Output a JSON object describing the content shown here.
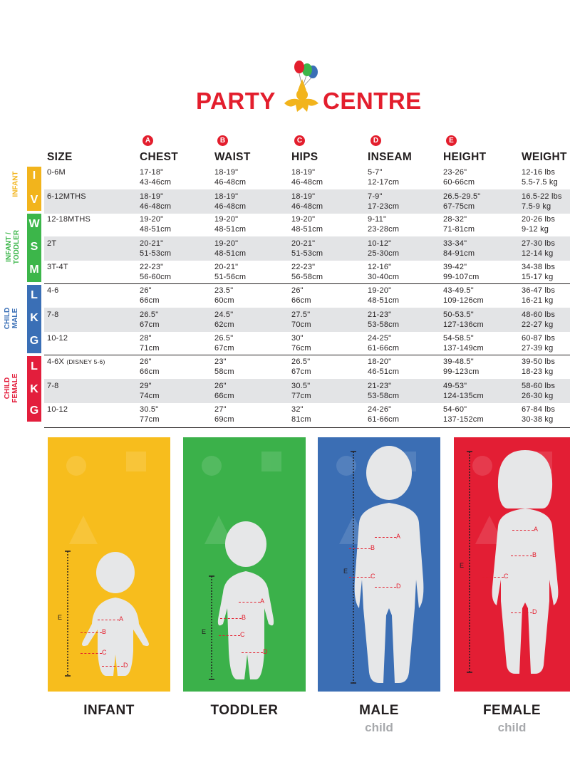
{
  "brand": {
    "name_left": "PARTY",
    "name_right": "CENTRE",
    "color": "#e31e2d"
  },
  "headers": [
    {
      "badge": "",
      "label": "SIZE"
    },
    {
      "badge": "A",
      "label": "CHEST"
    },
    {
      "badge": "B",
      "label": "WAIST"
    },
    {
      "badge": "C",
      "label": "HIPS"
    },
    {
      "badge": "D",
      "label": "INSEAM"
    },
    {
      "badge": "E",
      "label": "HEIGHT"
    },
    {
      "badge": "",
      "label": "WEIGHT"
    }
  ],
  "rows": [
    {
      "size": "0-6M",
      "size_note": "",
      "chest": "17-18\"\n43-46cm",
      "waist": "18-19\"\n46-48cm",
      "hips": "18-19\"\n46-48cm",
      "inseam": "5-7\"\n12-17cm",
      "height": "23-26\"\n60-66cm",
      "weight": "12-16 lbs\n5.5-7.5 kg"
    },
    {
      "size": "6-12MTHS",
      "size_note": "",
      "chest": "18-19\"\n46-48cm",
      "waist": "18-19\"\n46-48cm",
      "hips": "18-19\"\n46-48cm",
      "inseam": "7-9\"\n17-23cm",
      "height": "26.5-29.5\"\n67-75cm",
      "weight": "16.5-22 lbs\n7.5-9 kg"
    },
    {
      "size": "12-18MTHS",
      "size_note": "",
      "chest": "19-20\"\n48-51cm",
      "waist": "19-20\"\n48-51cm",
      "hips": "19-20\"\n48-51cm",
      "inseam": "9-11\"\n23-28cm",
      "height": "28-32\"\n71-81cm",
      "weight": "20-26 lbs\n9-12 kg"
    },
    {
      "size": "2T",
      "size_note": "",
      "chest": "20-21\"\n51-53cm",
      "waist": "19-20\"\n48-51cm",
      "hips": "20-21\"\n51-53cm",
      "inseam": "10-12\"\n25-30cm",
      "height": "33-34\"\n84-91cm",
      "weight": "27-30 lbs\n12-14 kg"
    },
    {
      "size": "3T-4T",
      "size_note": "",
      "chest": "22-23\"\n56-60cm",
      "waist": "20-21\"\n51-56cm",
      "hips": "22-23\"\n56-58cm",
      "inseam": "12-16\"\n30-40cm",
      "height": "39-42\"\n99-107cm",
      "weight": "34-38 lbs\n15-17 kg"
    },
    {
      "size": "4-6",
      "size_note": "",
      "chest": "26\"\n66cm",
      "waist": "23.5\"\n60cm",
      "hips": "26\"\n66cm",
      "inseam": "19-20\"\n48-51cm",
      "height": "43-49.5\"\n109-126cm",
      "weight": "36-47 lbs\n16-21 kg"
    },
    {
      "size": "7-8",
      "size_note": "",
      "chest": "26.5\"\n67cm",
      "waist": "24.5\"\n62cm",
      "hips": "27.5\"\n70cm",
      "inseam": "21-23\"\n53-58cm",
      "height": "50-53.5\"\n127-136cm",
      "weight": "48-60 lbs\n22-27 kg"
    },
    {
      "size": "10-12",
      "size_note": "",
      "chest": "28\"\n71cm",
      "waist": "26.5\"\n67cm",
      "hips": "30\"\n76cm",
      "inseam": "24-25\"\n61-66cm",
      "height": "54-58.5\"\n137-149cm",
      "weight": "60-87 lbs\n27-39 kg"
    },
    {
      "size": "4-6X",
      "size_note": "(DISNEY 5-6)",
      "chest": "26\"\n66cm",
      "waist": "23\"\n58cm",
      "hips": "26.5\"\n67cm",
      "inseam": "18-20\"\n46-51cm",
      "height": "39-48.5\"\n99-123cm",
      "weight": "39-50 lbs\n18-23 kg"
    },
    {
      "size": "7-8",
      "size_note": "",
      "chest": "29\"\n74cm",
      "waist": "26\"\n66cm",
      "hips": "30.5\"\n77cm",
      "inseam": "21-23\"\n53-58cm",
      "height": "49-53\"\n124-135cm",
      "weight": "58-60 lbs\n26-30 kg"
    },
    {
      "size": "10-12",
      "size_note": "",
      "chest": "30.5\"\n77cm",
      "waist": "27\"\n69cm",
      "hips": "32\"\n81cm",
      "inseam": "24-26\"\n61-66cm",
      "height": "54-60\"\n137-152cm",
      "weight": "67-84 lbs\n30-38 kg"
    }
  ],
  "groups": [
    {
      "label": "INFANT",
      "letters": [
        "I",
        "V"
      ],
      "color": "#f2b41c"
    },
    {
      "label": "INFANT /\nTODDLER",
      "letters": [
        "W",
        "S",
        "M"
      ],
      "color": "#3cb64a"
    },
    {
      "label": "CHILD\nMALE",
      "letters": [
        "L",
        "K",
        "G"
      ],
      "color": "#3a6fb6"
    },
    {
      "label": "CHILD\nFEMALE",
      "letters": [
        "L",
        "K",
        "G"
      ],
      "color": "#e31e3c"
    }
  ],
  "panels": [
    {
      "caption": "INFANT",
      "subcaption": "",
      "color": "#f7bd1d",
      "markers": {
        "e": "E",
        "a": "A",
        "b": "B",
        "c": "C",
        "d": "D"
      }
    },
    {
      "caption": "TODDLER",
      "subcaption": "",
      "color": "#3bb14a",
      "markers": {
        "e": "E",
        "a": "A",
        "b": "B",
        "c": "C",
        "d": "D"
      }
    },
    {
      "caption": "MALE",
      "subcaption": "child",
      "color": "#3b6eb4",
      "markers": {
        "e": "E",
        "a": "A",
        "b": "B",
        "c": "C",
        "d": "D"
      }
    },
    {
      "caption": "FEMALE",
      "subcaption": "child",
      "color": "#e31e34",
      "markers": {
        "e": "E",
        "a": "A",
        "b": "B",
        "c": "C",
        "d": "D"
      }
    }
  ]
}
